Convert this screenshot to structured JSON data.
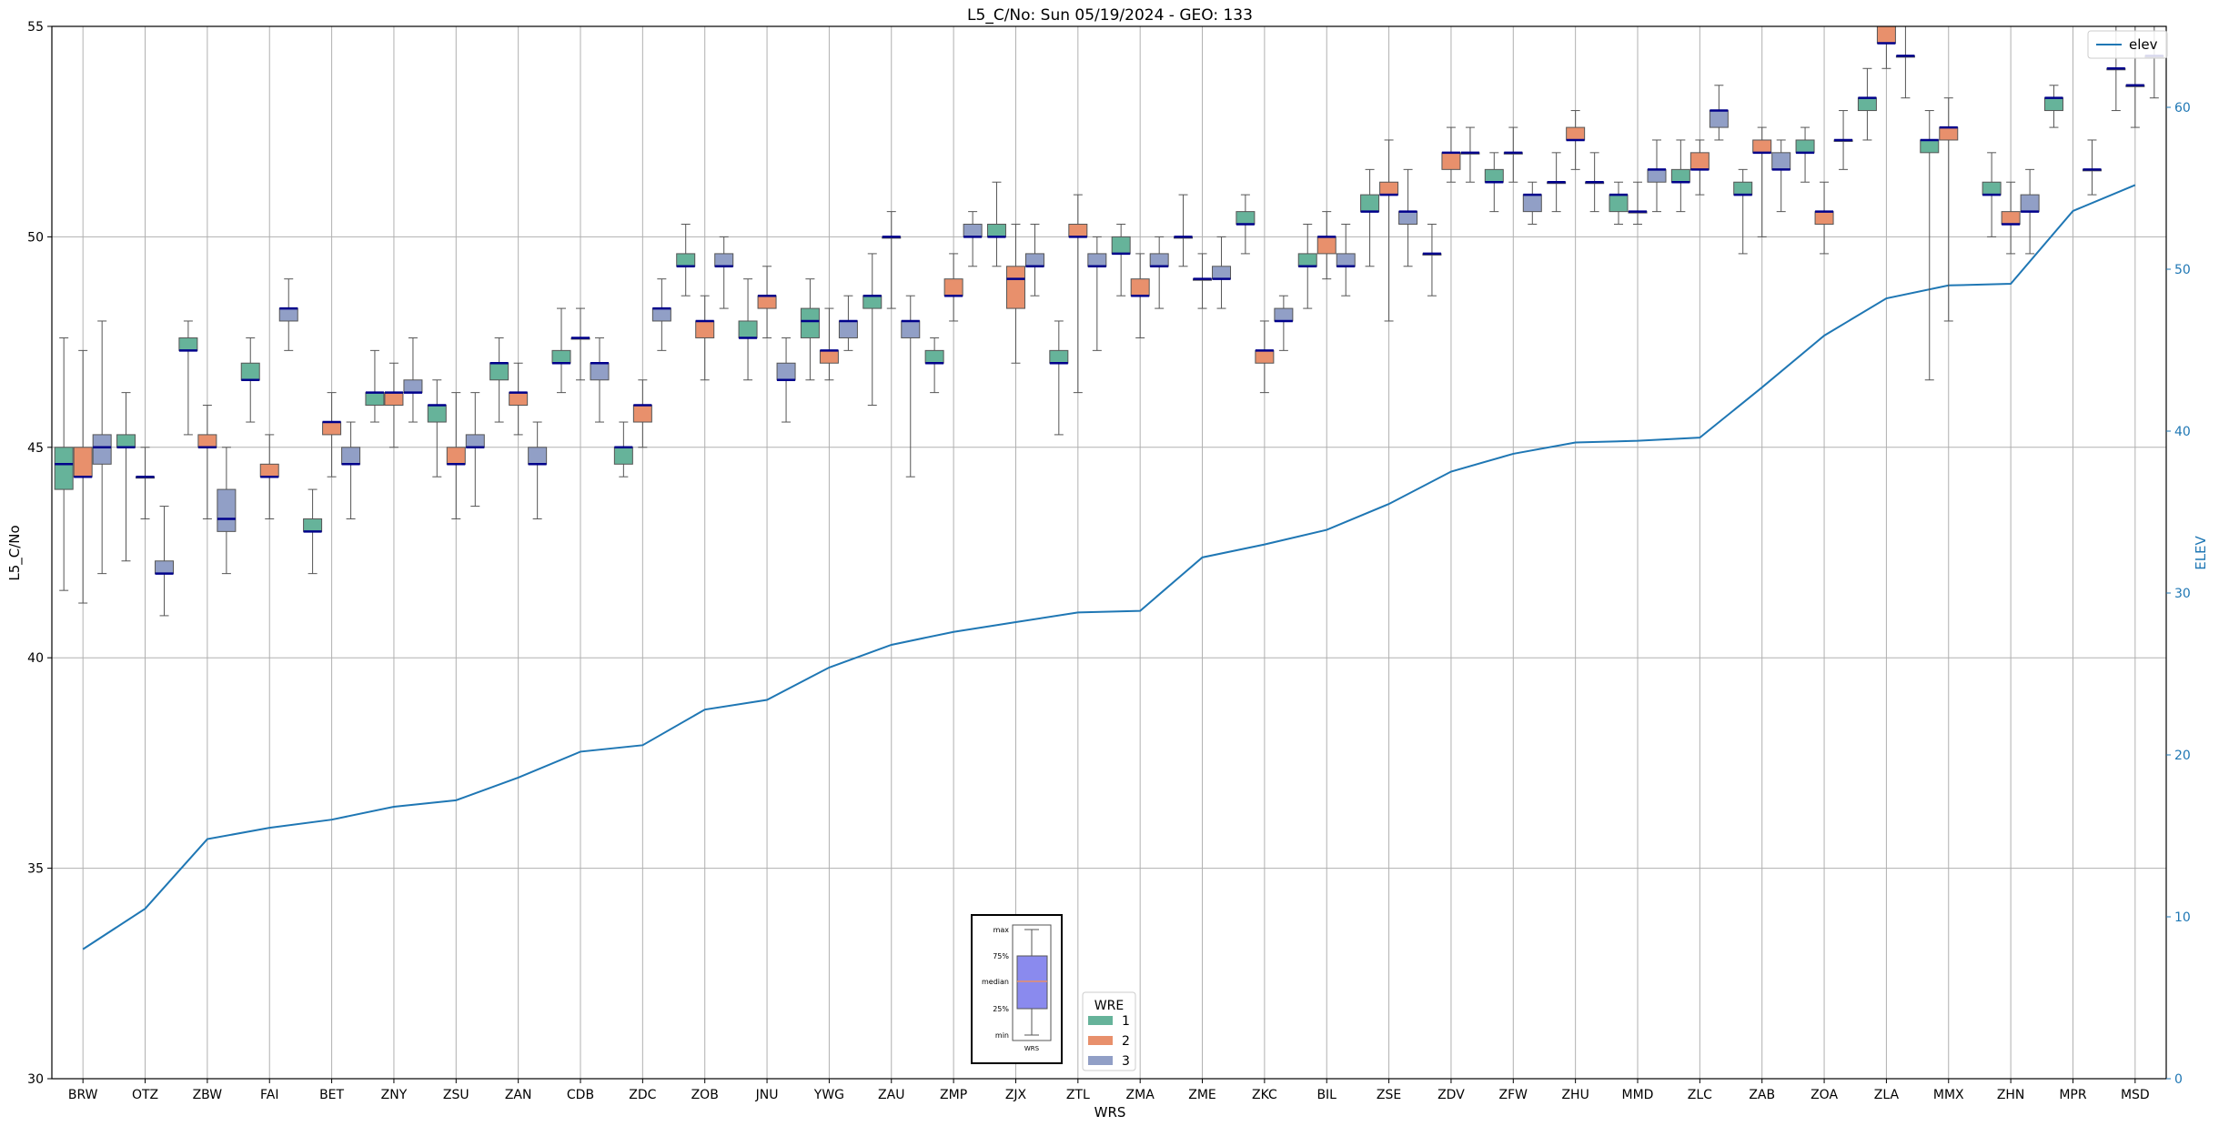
{
  "chart_data": {
    "type": "box",
    "title": "L5_C/No: Sun 05/19/2024 - GEO: 133",
    "xlabel": "WRS",
    "ylabel": "L5_C/No",
    "y2label": "ELEV",
    "ylim": [
      30,
      55
    ],
    "y2lim": [
      0,
      65
    ],
    "yticks": [
      30,
      35,
      40,
      45,
      50,
      55
    ],
    "y2ticks": [
      0,
      10,
      20,
      30,
      40,
      50,
      60
    ],
    "grid": true,
    "categories": [
      "BRW",
      "OTZ",
      "ZBW",
      "FAI",
      "BET",
      "ZNY",
      "ZSU",
      "ZAN",
      "CDB",
      "ZDC",
      "ZOB",
      "JNU",
      "YWG",
      "ZAU",
      "ZMP",
      "ZJX",
      "ZTL",
      "ZMA",
      "ZME",
      "ZKC",
      "BIL",
      "ZSE",
      "ZDV",
      "ZFW",
      "ZHU",
      "MMD",
      "ZLC",
      "ZAB",
      "ZOA",
      "ZLA",
      "MMX",
      "ZHN",
      "MPR",
      "MSD"
    ],
    "wre_colors": {
      "1": "#66b39a",
      "2": "#e8906c",
      "3": "#919fc6"
    },
    "median_color": "#00008b",
    "elev_color": "#1f77b4",
    "boxes": [
      {
        "cat": "BRW",
        "wre": 1,
        "min": 41.6,
        "q1": 44.0,
        "median": 44.6,
        "q3": 45.0,
        "max": 47.6
      },
      {
        "cat": "BRW",
        "wre": 2,
        "min": 41.3,
        "q1": 44.3,
        "median": 44.3,
        "q3": 45.0,
        "max": 47.3
      },
      {
        "cat": "BRW",
        "wre": 3,
        "min": 42.0,
        "q1": 44.6,
        "median": 45.0,
        "q3": 45.3,
        "max": 48.0
      },
      {
        "cat": "OTZ",
        "wre": 1,
        "min": 42.3,
        "q1": 45.0,
        "median": 45.0,
        "q3": 45.3,
        "max": 46.3
      },
      {
        "cat": "OTZ",
        "wre": 2,
        "min": 43.3,
        "q1": 44.3,
        "median": 44.3,
        "q3": 44.3,
        "max": 45.0
      },
      {
        "cat": "OTZ",
        "wre": 3,
        "min": 41.0,
        "q1": 42.0,
        "median": 42.0,
        "q3": 42.3,
        "max": 43.6
      },
      {
        "cat": "ZBW",
        "wre": 1,
        "min": 45.3,
        "q1": 47.3,
        "median": 47.3,
        "q3": 47.6,
        "max": 48.0
      },
      {
        "cat": "ZBW",
        "wre": 2,
        "min": 43.3,
        "q1": 45.0,
        "median": 45.0,
        "q3": 45.3,
        "max": 46.0
      },
      {
        "cat": "ZBW",
        "wre": 3,
        "min": 42.0,
        "q1": 43.0,
        "median": 43.3,
        "q3": 44.0,
        "max": 45.0
      },
      {
        "cat": "FAI",
        "wre": 1,
        "min": 45.6,
        "q1": 46.6,
        "median": 46.6,
        "q3": 47.0,
        "max": 47.6
      },
      {
        "cat": "FAI",
        "wre": 2,
        "min": 43.3,
        "q1": 44.3,
        "median": 44.3,
        "q3": 44.6,
        "max": 45.3
      },
      {
        "cat": "FAI",
        "wre": 3,
        "min": 47.3,
        "q1": 48.0,
        "median": 48.3,
        "q3": 48.3,
        "max": 49.0
      },
      {
        "cat": "BET",
        "wre": 1,
        "min": 42.0,
        "q1": 43.0,
        "median": 43.0,
        "q3": 43.3,
        "max": 44.0
      },
      {
        "cat": "BET",
        "wre": 2,
        "min": 44.3,
        "q1": 45.3,
        "median": 45.6,
        "q3": 45.6,
        "max": 46.3
      },
      {
        "cat": "BET",
        "wre": 3,
        "min": 43.3,
        "q1": 44.6,
        "median": 44.6,
        "q3": 45.0,
        "max": 45.6
      },
      {
        "cat": "ZNY",
        "wre": 1,
        "min": 45.6,
        "q1": 46.0,
        "median": 46.3,
        "q3": 46.3,
        "max": 47.3
      },
      {
        "cat": "ZNY",
        "wre": 2,
        "min": 45.0,
        "q1": 46.0,
        "median": 46.3,
        "q3": 46.3,
        "max": 47.0
      },
      {
        "cat": "ZNY",
        "wre": 3,
        "min": 45.6,
        "q1": 46.3,
        "median": 46.3,
        "q3": 46.6,
        "max": 47.6
      },
      {
        "cat": "ZSU",
        "wre": 1,
        "min": 44.3,
        "q1": 45.6,
        "median": 46.0,
        "q3": 46.0,
        "max": 46.6
      },
      {
        "cat": "ZSU",
        "wre": 2,
        "min": 43.3,
        "q1": 44.6,
        "median": 44.6,
        "q3": 45.0,
        "max": 46.3
      },
      {
        "cat": "ZSU",
        "wre": 3,
        "min": 43.6,
        "q1": 45.0,
        "median": 45.0,
        "q3": 45.3,
        "max": 46.3
      },
      {
        "cat": "ZAN",
        "wre": 1,
        "min": 45.6,
        "q1": 46.6,
        "median": 47.0,
        "q3": 47.0,
        "max": 47.6
      },
      {
        "cat": "ZAN",
        "wre": 2,
        "min": 45.3,
        "q1": 46.0,
        "median": 46.3,
        "q3": 46.3,
        "max": 47.0
      },
      {
        "cat": "ZAN",
        "wre": 3,
        "min": 43.3,
        "q1": 44.6,
        "median": 44.6,
        "q3": 45.0,
        "max": 45.6
      },
      {
        "cat": "CDB",
        "wre": 1,
        "min": 46.3,
        "q1": 47.0,
        "median": 47.0,
        "q3": 47.3,
        "max": 48.3
      },
      {
        "cat": "CDB",
        "wre": 2,
        "min": 46.6,
        "q1": 47.6,
        "median": 47.6,
        "q3": 47.6,
        "max": 48.3
      },
      {
        "cat": "CDB",
        "wre": 3,
        "min": 45.6,
        "q1": 46.6,
        "median": 47.0,
        "q3": 47.0,
        "max": 47.6
      },
      {
        "cat": "ZDC",
        "wre": 1,
        "min": 44.3,
        "q1": 44.6,
        "median": 45.0,
        "q3": 45.0,
        "max": 45.6
      },
      {
        "cat": "ZDC",
        "wre": 2,
        "min": 45.0,
        "q1": 45.6,
        "median": 46.0,
        "q3": 46.0,
        "max": 46.6
      },
      {
        "cat": "ZDC",
        "wre": 3,
        "min": 47.3,
        "q1": 48.0,
        "median": 48.3,
        "q3": 48.3,
        "max": 49.0
      },
      {
        "cat": "ZOB",
        "wre": 1,
        "min": 48.6,
        "q1": 49.3,
        "median": 49.3,
        "q3": 49.6,
        "max": 50.3
      },
      {
        "cat": "ZOB",
        "wre": 2,
        "min": 46.6,
        "q1": 47.6,
        "median": 48.0,
        "q3": 48.0,
        "max": 48.6
      },
      {
        "cat": "ZOB",
        "wre": 3,
        "min": 48.3,
        "q1": 49.3,
        "median": 49.3,
        "q3": 49.6,
        "max": 50.0
      },
      {
        "cat": "JNU",
        "wre": 1,
        "min": 46.6,
        "q1": 47.6,
        "median": 47.6,
        "q3": 48.0,
        "max": 49.0
      },
      {
        "cat": "JNU",
        "wre": 2,
        "min": 47.6,
        "q1": 48.3,
        "median": 48.6,
        "q3": 48.6,
        "max": 49.3
      },
      {
        "cat": "JNU",
        "wre": 3,
        "min": 45.6,
        "q1": 46.6,
        "median": 46.6,
        "q3": 47.0,
        "max": 47.6
      },
      {
        "cat": "YWG",
        "wre": 1,
        "min": 46.6,
        "q1": 47.6,
        "median": 48.0,
        "q3": 48.3,
        "max": 49.0
      },
      {
        "cat": "YWG",
        "wre": 2,
        "min": 46.6,
        "q1": 47.0,
        "median": 47.3,
        "q3": 47.3,
        "max": 48.3
      },
      {
        "cat": "YWG",
        "wre": 3,
        "min": 47.3,
        "q1": 47.6,
        "median": 48.0,
        "q3": 48.0,
        "max": 48.6
      },
      {
        "cat": "ZAU",
        "wre": 1,
        "min": 46.0,
        "q1": 48.3,
        "median": 48.6,
        "q3": 48.6,
        "max": 49.6
      },
      {
        "cat": "ZAU",
        "wre": 2,
        "min": 48.3,
        "q1": 50.0,
        "median": 50.0,
        "q3": 50.0,
        "max": 50.6
      },
      {
        "cat": "ZAU",
        "wre": 3,
        "min": 44.3,
        "q1": 47.6,
        "median": 48.0,
        "q3": 48.0,
        "max": 48.6
      },
      {
        "cat": "ZMP",
        "wre": 1,
        "min": 46.3,
        "q1": 47.0,
        "median": 47.0,
        "q3": 47.3,
        "max": 47.6
      },
      {
        "cat": "ZMP",
        "wre": 2,
        "min": 48.0,
        "q1": 48.6,
        "median": 48.6,
        "q3": 49.0,
        "max": 49.6
      },
      {
        "cat": "ZMP",
        "wre": 3,
        "min": 49.3,
        "q1": 50.0,
        "median": 50.0,
        "q3": 50.3,
        "max": 50.6
      },
      {
        "cat": "ZJX",
        "wre": 1,
        "min": 49.3,
        "q1": 50.0,
        "median": 50.0,
        "q3": 50.3,
        "max": 51.3
      },
      {
        "cat": "ZJX",
        "wre": 2,
        "min": 47.0,
        "q1": 48.3,
        "median": 49.0,
        "q3": 49.3,
        "max": 50.3
      },
      {
        "cat": "ZJX",
        "wre": 3,
        "min": 48.6,
        "q1": 49.3,
        "median": 49.3,
        "q3": 49.6,
        "max": 50.3
      },
      {
        "cat": "ZTL",
        "wre": 1,
        "min": 45.3,
        "q1": 47.0,
        "median": 47.0,
        "q3": 47.3,
        "max": 48.0
      },
      {
        "cat": "ZTL",
        "wre": 2,
        "min": 46.3,
        "q1": 50.0,
        "median": 50.0,
        "q3": 50.3,
        "max": 51.0
      },
      {
        "cat": "ZTL",
        "wre": 3,
        "min": 47.3,
        "q1": 49.3,
        "median": 49.3,
        "q3": 49.6,
        "max": 50.0
      },
      {
        "cat": "ZMA",
        "wre": 1,
        "min": 48.6,
        "q1": 49.6,
        "median": 49.6,
        "q3": 50.0,
        "max": 50.3
      },
      {
        "cat": "ZMA",
        "wre": 2,
        "min": 47.6,
        "q1": 48.6,
        "median": 48.6,
        "q3": 49.0,
        "max": 49.6
      },
      {
        "cat": "ZMA",
        "wre": 3,
        "min": 48.3,
        "q1": 49.3,
        "median": 49.3,
        "q3": 49.6,
        "max": 50.0
      },
      {
        "cat": "ZME",
        "wre": 1,
        "min": 49.3,
        "q1": 50.0,
        "median": 50.0,
        "q3": 50.0,
        "max": 51.0
      },
      {
        "cat": "ZME",
        "wre": 2,
        "min": 48.3,
        "q1": 49.0,
        "median": 49.0,
        "q3": 49.0,
        "max": 49.6
      },
      {
        "cat": "ZME",
        "wre": 3,
        "min": 48.3,
        "q1": 49.0,
        "median": 49.0,
        "q3": 49.3,
        "max": 50.0
      },
      {
        "cat": "ZKC",
        "wre": 1,
        "min": 49.6,
        "q1": 50.3,
        "median": 50.3,
        "q3": 50.6,
        "max": 51.0
      },
      {
        "cat": "ZKC",
        "wre": 2,
        "min": 46.3,
        "q1": 47.0,
        "median": 47.3,
        "q3": 47.3,
        "max": 48.0
      },
      {
        "cat": "ZKC",
        "wre": 3,
        "min": 47.3,
        "q1": 48.0,
        "median": 48.0,
        "q3": 48.3,
        "max": 48.6
      },
      {
        "cat": "BIL",
        "wre": 1,
        "min": 48.3,
        "q1": 49.3,
        "median": 49.3,
        "q3": 49.6,
        "max": 50.3
      },
      {
        "cat": "BIL",
        "wre": 2,
        "min": 49.0,
        "q1": 49.6,
        "median": 50.0,
        "q3": 50.0,
        "max": 50.6
      },
      {
        "cat": "BIL",
        "wre": 3,
        "min": 48.6,
        "q1": 49.3,
        "median": 49.3,
        "q3": 49.6,
        "max": 50.3
      },
      {
        "cat": "ZSE",
        "wre": 1,
        "min": 49.3,
        "q1": 50.6,
        "median": 50.6,
        "q3": 51.0,
        "max": 51.6
      },
      {
        "cat": "ZSE",
        "wre": 2,
        "min": 48.0,
        "q1": 51.0,
        "median": 51.0,
        "q3": 51.3,
        "max": 52.3
      },
      {
        "cat": "ZSE",
        "wre": 3,
        "min": 49.3,
        "q1": 50.3,
        "median": 50.6,
        "q3": 50.6,
        "max": 51.6
      },
      {
        "cat": "ZDV",
        "wre": 1,
        "min": 48.6,
        "q1": 49.6,
        "median": 49.6,
        "q3": 49.6,
        "max": 50.3
      },
      {
        "cat": "ZDV",
        "wre": 2,
        "min": 51.3,
        "q1": 51.6,
        "median": 52.0,
        "q3": 52.0,
        "max": 52.6
      },
      {
        "cat": "ZDV",
        "wre": 3,
        "min": 51.3,
        "q1": 52.0,
        "median": 52.0,
        "q3": 52.0,
        "max": 52.6
      },
      {
        "cat": "ZFW",
        "wre": 1,
        "min": 50.6,
        "q1": 51.3,
        "median": 51.3,
        "q3": 51.6,
        "max": 52.0
      },
      {
        "cat": "ZFW",
        "wre": 2,
        "min": 51.3,
        "q1": 52.0,
        "median": 52.0,
        "q3": 52.0,
        "max": 52.6
      },
      {
        "cat": "ZFW",
        "wre": 3,
        "min": 50.3,
        "q1": 50.6,
        "median": 51.0,
        "q3": 51.0,
        "max": 51.3
      },
      {
        "cat": "ZHU",
        "wre": 1,
        "min": 50.6,
        "q1": 51.3,
        "median": 51.3,
        "q3": 51.3,
        "max": 52.0
      },
      {
        "cat": "ZHU",
        "wre": 2,
        "min": 51.6,
        "q1": 52.3,
        "median": 52.3,
        "q3": 52.6,
        "max": 53.0
      },
      {
        "cat": "ZHU",
        "wre": 3,
        "min": 50.6,
        "q1": 51.3,
        "median": 51.3,
        "q3": 51.3,
        "max": 52.0
      },
      {
        "cat": "MMD",
        "wre": 1,
        "min": 50.3,
        "q1": 50.6,
        "median": 51.0,
        "q3": 51.0,
        "max": 51.3
      },
      {
        "cat": "MMD",
        "wre": 2,
        "min": 50.3,
        "q1": 50.6,
        "median": 50.6,
        "q3": 50.6,
        "max": 51.3
      },
      {
        "cat": "MMD",
        "wre": 3,
        "min": 50.6,
        "q1": 51.3,
        "median": 51.6,
        "q3": 51.6,
        "max": 52.3
      },
      {
        "cat": "ZLC",
        "wre": 1,
        "min": 50.6,
        "q1": 51.3,
        "median": 51.3,
        "q3": 51.6,
        "max": 52.3
      },
      {
        "cat": "ZLC",
        "wre": 2,
        "min": 51.0,
        "q1": 51.6,
        "median": 51.6,
        "q3": 52.0,
        "max": 52.3
      },
      {
        "cat": "ZLC",
        "wre": 3,
        "min": 52.3,
        "q1": 52.6,
        "median": 53.0,
        "q3": 53.0,
        "max": 53.6
      },
      {
        "cat": "ZAB",
        "wre": 1,
        "min": 49.6,
        "q1": 51.0,
        "median": 51.0,
        "q3": 51.3,
        "max": 51.6
      },
      {
        "cat": "ZAB",
        "wre": 2,
        "min": 50.0,
        "q1": 52.0,
        "median": 52.0,
        "q3": 52.3,
        "max": 52.6
      },
      {
        "cat": "ZAB",
        "wre": 3,
        "min": 50.6,
        "q1": 51.6,
        "median": 51.6,
        "q3": 52.0,
        "max": 52.3
      },
      {
        "cat": "ZOA",
        "wre": 1,
        "min": 51.3,
        "q1": 52.0,
        "median": 52.0,
        "q3": 52.3,
        "max": 52.6
      },
      {
        "cat": "ZOA",
        "wre": 2,
        "min": 49.6,
        "q1": 50.3,
        "median": 50.6,
        "q3": 50.6,
        "max": 51.3
      },
      {
        "cat": "ZOA",
        "wre": 3,
        "min": 51.6,
        "q1": 52.3,
        "median": 52.3,
        "q3": 52.3,
        "max": 53.0
      },
      {
        "cat": "ZLA",
        "wre": 1,
        "min": 52.3,
        "q1": 53.0,
        "median": 53.3,
        "q3": 53.3,
        "max": 54.0
      },
      {
        "cat": "ZLA",
        "wre": 2,
        "min": 54.0,
        "q1": 54.6,
        "median": 54.6,
        "q3": 55.0,
        "max": 55.0
      },
      {
        "cat": "ZLA",
        "wre": 3,
        "min": 53.3,
        "q1": 54.3,
        "median": 54.3,
        "q3": 54.3,
        "max": 55.0
      },
      {
        "cat": "MMX",
        "wre": 1,
        "min": 46.6,
        "q1": 52.0,
        "median": 52.3,
        "q3": 52.3,
        "max": 53.0
      },
      {
        "cat": "MMX",
        "wre": 2,
        "min": 48.0,
        "q1": 52.3,
        "median": 52.6,
        "q3": 52.6,
        "max": 53.3
      },
      {
        "cat": "ZHN",
        "wre": 1,
        "min": 50.0,
        "q1": 51.0,
        "median": 51.0,
        "q3": 51.3,
        "max": 52.0
      },
      {
        "cat": "ZHN",
        "wre": 2,
        "min": 49.6,
        "q1": 50.3,
        "median": 50.3,
        "q3": 50.6,
        "max": 51.3
      },
      {
        "cat": "ZHN",
        "wre": 3,
        "min": 49.6,
        "q1": 50.6,
        "median": 50.6,
        "q3": 51.0,
        "max": 51.6
      },
      {
        "cat": "MPR",
        "wre": 1,
        "min": 52.6,
        "q1": 53.0,
        "median": 53.3,
        "q3": 53.3,
        "max": 53.6
      },
      {
        "cat": "MPR",
        "wre": 3,
        "min": 51.0,
        "q1": 51.6,
        "median": 51.6,
        "q3": 51.6,
        "max": 52.3
      },
      {
        "cat": "MSD",
        "wre": 1,
        "min": 53.0,
        "q1": 54.0,
        "median": 54.0,
        "q3": 54.0,
        "max": 55.0
      },
      {
        "cat": "MSD",
        "wre": 2,
        "min": 52.6,
        "q1": 53.6,
        "median": 53.6,
        "q3": 53.6,
        "max": 55.0
      },
      {
        "cat": "MSD",
        "wre": 3,
        "min": 53.3,
        "q1": 54.3,
        "median": 54.3,
        "q3": 54.3,
        "max": 55.0
      }
    ],
    "elev": {
      "name": "elev",
      "values": [
        8.0,
        10.5,
        14.8,
        15.5,
        16.0,
        16.8,
        17.2,
        18.6,
        20.2,
        20.6,
        22.8,
        23.4,
        25.4,
        26.8,
        27.6,
        28.2,
        28.8,
        28.9,
        32.2,
        33.0,
        33.9,
        35.5,
        37.5,
        38.6,
        39.3,
        39.4,
        39.6,
        42.7,
        45.9,
        48.2,
        49.0,
        49.1,
        53.6,
        55.2
      ]
    },
    "legend_elev_label": "elev",
    "legend_wre_title": "WRE",
    "legend_wre_entries": [
      "1",
      "2",
      "3"
    ],
    "key_labels": {
      "max": "max",
      "q3": "75%",
      "median": "median",
      "q1": "25%",
      "min": "min",
      "name": "WRS"
    }
  }
}
